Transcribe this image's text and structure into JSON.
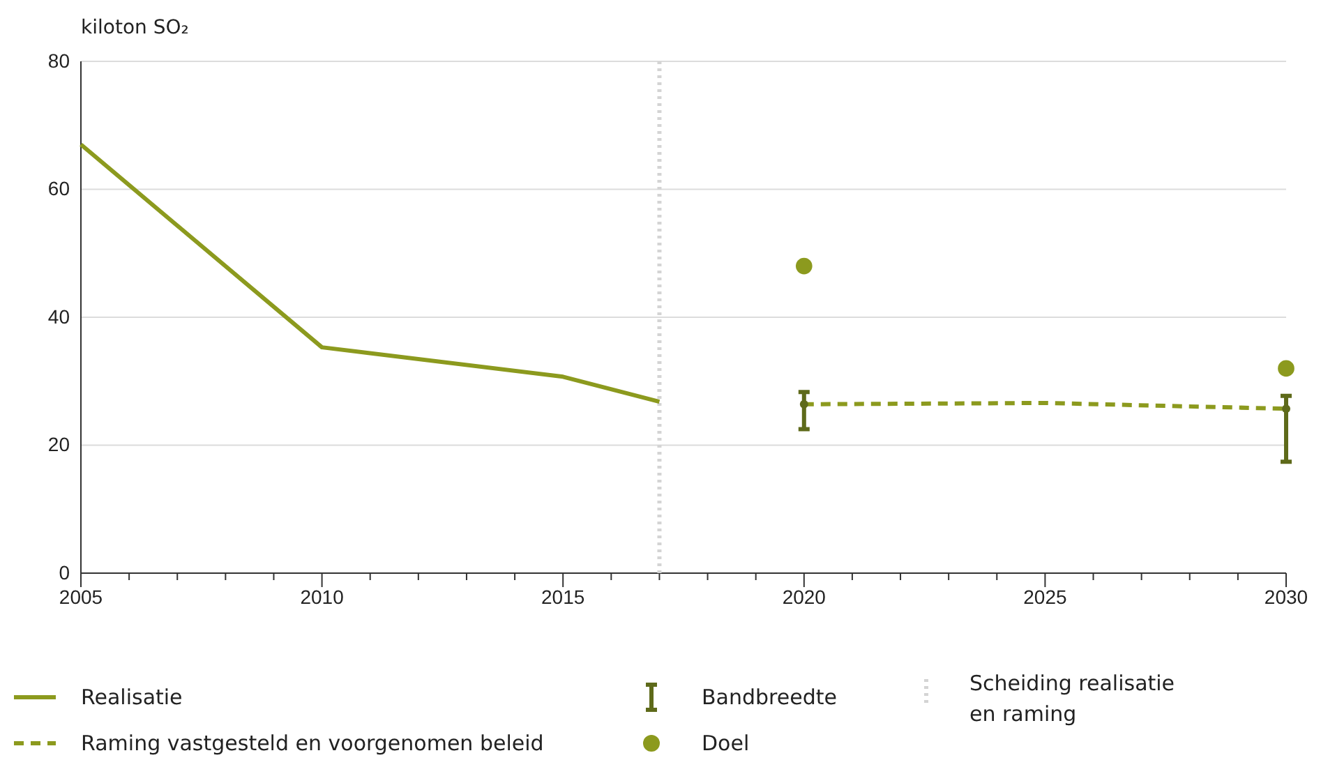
{
  "chart_data": {
    "type": "line",
    "ylabel": "kiloton SO₂",
    "xlim": [
      2005,
      2030
    ],
    "ylim": [
      0,
      80
    ],
    "xticks": [
      2005,
      {
        "value": 2006,
        "label": null
      },
      {
        "value": 2007,
        "label": null
      },
      {
        "value": 2008,
        "label": null
      },
      {
        "value": 2009,
        "label": null
      },
      2010,
      {
        "value": 2011,
        "label": null
      },
      {
        "value": 2012,
        "label": null
      },
      {
        "value": 2013,
        "label": null
      },
      {
        "value": 2014,
        "label": null
      },
      2015,
      {
        "value": 2016,
        "label": null
      },
      {
        "value": 2017,
        "label": null
      },
      {
        "value": 2018,
        "label": null
      },
      {
        "value": 2019,
        "label": null
      },
      2020,
      {
        "value": 2021,
        "label": null
      },
      {
        "value": 2022,
        "label": null
      },
      {
        "value": 2023,
        "label": null
      },
      {
        "value": 2024,
        "label": null
      },
      2025,
      {
        "value": 2026,
        "label": null
      },
      {
        "value": 2027,
        "label": null
      },
      {
        "value": 2028,
        "label": null
      },
      {
        "value": 2029,
        "label": null
      },
      2030
    ],
    "yticks": [
      0,
      20,
      40,
      60,
      80
    ],
    "grid": "y",
    "legend": "bottom",
    "series": [
      {
        "name": "Realisatie",
        "color": "#8c9a1e",
        "line_style": "solid",
        "x": [
          2005,
          2010,
          2015,
          2017
        ],
        "values": [
          67,
          35.3,
          30.7,
          26.8
        ]
      },
      {
        "name": "Raming vastgesteld en voorgenomen beleid",
        "color": "#8c9a1e",
        "line_style": "dashed",
        "x": [
          2020,
          2025,
          2030
        ],
        "values": [
          26.4,
          26.6,
          25.7
        ]
      },
      {
        "name": "Bandbreedte",
        "type": "scatter",
        "color": "#5e6a1a",
        "x": [
          2020,
          2030
        ],
        "values": [
          26.4,
          25.7
        ],
        "errors": [
          [
            22.5,
            28.3
          ],
          [
            17.4,
            27.7
          ]
        ]
      },
      {
        "name": "Doel",
        "type": "scatter",
        "marker": "circle",
        "color": "#8c9a1e",
        "x": [
          2020,
          2030
        ],
        "values": [
          48,
          32
        ]
      }
    ],
    "ref_lines": [
      {
        "axis": "x",
        "value": 2017,
        "label": "Scheiding realisatie en raming",
        "color": "#d4d4d4",
        "line_style": "dotted"
      }
    ]
  }
}
